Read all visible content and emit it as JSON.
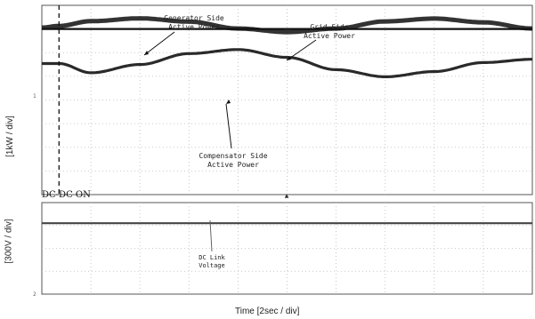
{
  "chart_data": [
    {
      "type": "line",
      "ylabel": "[1kW / div]",
      "xlabel": "",
      "xlim": [
        0,
        10
      ],
      "ylim": [
        -4,
        4
      ],
      "marker_text": "DC-DC ON",
      "marker_x": 0.35,
      "series": [
        {
          "name": "Generator Side\nActive Power",
          "color": "#333333",
          "width": 5,
          "x": [
            0,
            0.35,
            1,
            2,
            3,
            4,
            5,
            6,
            7,
            8,
            9,
            10
          ],
          "y": [
            3.06,
            3.13,
            3.33,
            3.45,
            3.31,
            3.02,
            2.87,
            3.02,
            3.32,
            3.44,
            3.28,
            3.02
          ]
        },
        {
          "name": "Grid Side\nActive Power",
          "color": "#111111",
          "width": 2.2,
          "x": [
            0,
            0.35,
            1,
            2,
            3,
            4,
            5,
            6,
            7,
            8,
            9,
            10
          ],
          "y": [
            3.0,
            3.0,
            3.0,
            3.0,
            3.0,
            3.0,
            3.0,
            3.0,
            3.0,
            3.0,
            3.0,
            3.0
          ]
        },
        {
          "name": "Compensator Side\nActive Power",
          "color": "#2a2a2a",
          "width": 3.2,
          "x": [
            0,
            0.35,
            1,
            2,
            3,
            4,
            5,
            6,
            7,
            8,
            9,
            10
          ],
          "y": [
            1.54,
            1.54,
            1.15,
            1.5,
            1.96,
            2.13,
            1.8,
            1.28,
            0.98,
            1.2,
            1.58,
            1.72
          ]
        }
      ],
      "annotations": [
        {
          "text": "Generator Side\nActive Power"
        },
        {
          "text": "Grid Side\nActive Power"
        },
        {
          "text": "Compensator Side\nActive Power"
        }
      ]
    },
    {
      "type": "line",
      "ylabel": "[300V / div]",
      "xlabel": "Time [2sec / div]",
      "xlim": [
        0,
        10
      ],
      "ylim": [
        0,
        4
      ],
      "series": [
        {
          "name": "DC Link\nVoltage",
          "color": "#444444",
          "width": 2.2,
          "x": [
            0,
            10
          ],
          "y": [
            3.1,
            3.1
          ]
        }
      ],
      "annotations": [
        {
          "text": "DC Link\nVoltage"
        }
      ]
    }
  ]
}
